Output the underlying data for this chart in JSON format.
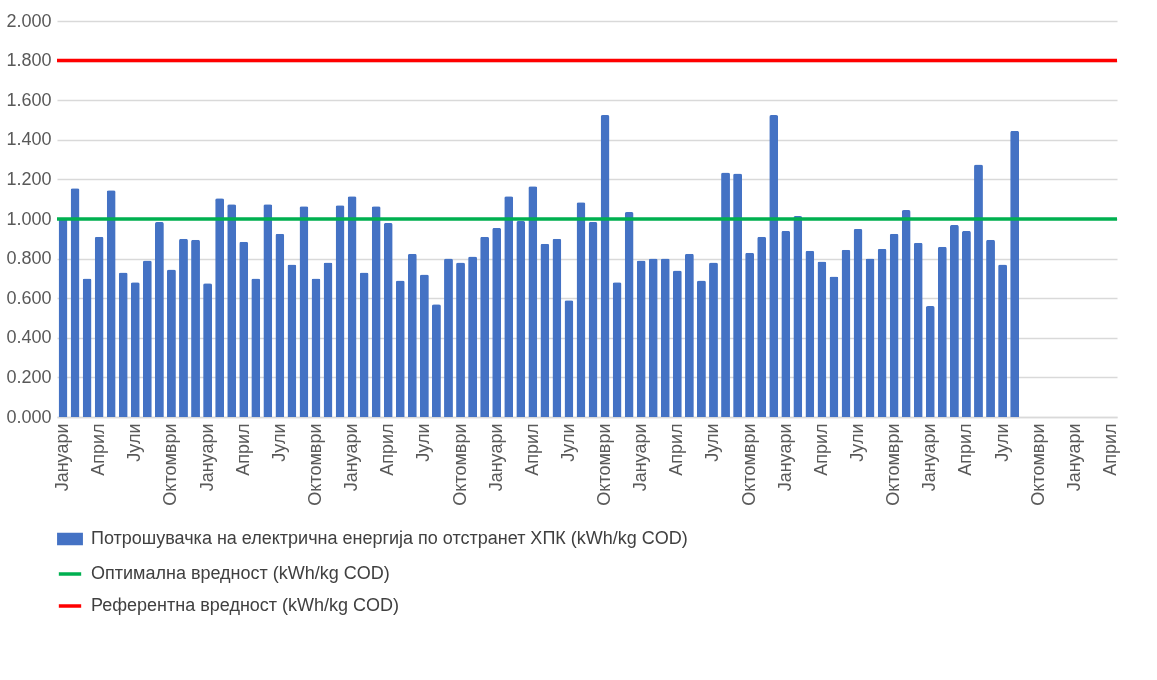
{
  "chart_data": {
    "type": "bar",
    "categories": [
      "Јануари",
      null,
      null,
      "Април",
      null,
      null,
      "Јули",
      null,
      null,
      "Октомври",
      null,
      null,
      "Јануари",
      null,
      null,
      "Април",
      null,
      null,
      "Јули",
      null,
      null,
      "Октомври",
      null,
      null,
      "Јануари",
      null,
      null,
      "Април",
      null,
      null,
      "Јули",
      null,
      null,
      "Октомври",
      null,
      null,
      "Јануари",
      null,
      null,
      "Април",
      null,
      null,
      "Јули",
      null,
      null,
      "Октомври",
      null,
      null,
      "Јануари",
      null,
      null,
      "Април",
      null,
      null,
      "Јули",
      null,
      null,
      "Октомври",
      null,
      null,
      "Јануари",
      null,
      null,
      "Април",
      null,
      null,
      "Јули",
      null,
      null,
      "Октомври",
      null,
      null,
      "Јануари",
      null,
      null,
      "Април",
      null,
      null,
      "Јули",
      null,
      null,
      "Октомври",
      null,
      null,
      "Јануари",
      null,
      null,
      "Април"
    ],
    "series": [
      {
        "name": "Потрошувачка на електрична енергија по отстранет ХПК (kWh/kg COD)",
        "color": "#4472c4",
        "values": [
          1.0,
          1.155,
          0.7,
          0.91,
          1.145,
          0.73,
          0.68,
          0.79,
          0.985,
          0.745,
          0.9,
          0.895,
          0.675,
          1.105,
          1.075,
          0.885,
          0.7,
          1.075,
          0.925,
          0.77,
          1.065,
          0.7,
          0.78,
          1.07,
          1.115,
          0.73,
          1.065,
          0.98,
          0.69,
          0.825,
          0.72,
          0.57,
          0.8,
          0.78,
          0.81,
          0.91,
          0.955,
          1.115,
          0.99,
          1.165,
          0.875,
          0.9,
          0.59,
          1.085,
          0.985,
          1.525,
          0.68,
          1.035,
          0.79,
          0.8,
          0.8,
          0.74,
          0.825,
          0.69,
          0.78,
          1.235,
          1.23,
          0.83,
          0.91,
          1.525,
          0.94,
          1.015,
          0.84,
          0.785,
          0.71,
          0.845,
          0.95,
          0.8,
          0.85,
          0.925,
          1.045,
          0.88,
          0.56,
          0.86,
          0.97,
          0.94,
          1.275,
          0.895,
          0.77,
          1.445,
          null,
          null,
          null,
          null,
          null,
          null,
          null,
          null
        ]
      }
    ],
    "ref_lines": [
      {
        "axis": "y",
        "value": 1.0,
        "label": "Оптимална вредност (kWh/kg COD)",
        "color": "#00b050"
      },
      {
        "axis": "y",
        "value": 1.8,
        "label": "Референтна вредност (kWh/kg COD)",
        "color": "#ff0000"
      }
    ],
    "ylim": [
      0,
      2
    ],
    "yticks": [
      {
        "value": 0,
        "label": "0.000"
      },
      {
        "value": 0.2,
        "label": "0.200"
      },
      {
        "value": 0.4,
        "label": "0.400"
      },
      {
        "value": 0.6,
        "label": "0.600"
      },
      {
        "value": 0.8,
        "label": "0.800"
      },
      {
        "value": 1.0,
        "label": "1.000"
      },
      {
        "value": 1.2,
        "label": "1.200"
      },
      {
        "value": 1.4,
        "label": "1.400"
      },
      {
        "value": 1.6,
        "label": "1.600"
      },
      {
        "value": 1.8,
        "label": "1.800"
      },
      {
        "value": 2.0,
        "label": "2.000"
      }
    ],
    "grid": "y",
    "legend": "bottom"
  }
}
